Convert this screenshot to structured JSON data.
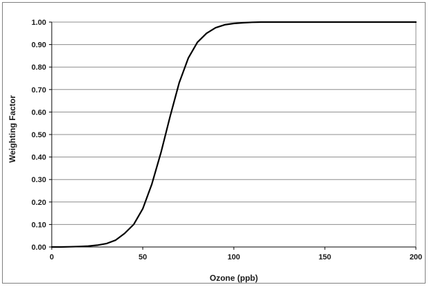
{
  "chart_data": {
    "type": "line",
    "title": "",
    "xlabel": "Ozone (ppb)",
    "ylabel": "Weighting Factor",
    "xlim": [
      0,
      200
    ],
    "ylim": [
      0,
      1
    ],
    "x_ticks": [
      "0",
      "50",
      "100",
      "150",
      "200"
    ],
    "y_ticks": [
      "0.00",
      "0.10",
      "0.20",
      "0.30",
      "0.40",
      "0.50",
      "0.60",
      "0.70",
      "0.80",
      "0.90",
      "1.00"
    ],
    "grid": "horizontal",
    "legend": "none",
    "line_color": "#000000",
    "grid_color": "#8c8c8c",
    "series": [
      {
        "x": [
          0,
          5,
          10,
          15,
          20,
          25,
          30,
          35,
          40,
          45,
          50,
          55,
          60,
          65,
          70,
          75,
          80,
          85,
          90,
          95,
          100,
          105,
          110,
          115,
          120,
          130,
          140,
          150,
          160,
          170,
          180,
          190,
          200
        ],
        "values": [
          0.0,
          0.0,
          0.001,
          0.002,
          0.004,
          0.008,
          0.015,
          0.03,
          0.06,
          0.1,
          0.17,
          0.28,
          0.42,
          0.58,
          0.73,
          0.84,
          0.91,
          0.95,
          0.975,
          0.988,
          0.994,
          0.997,
          0.999,
          1.0,
          1.0,
          1.0,
          1.0,
          1.0,
          1.0,
          1.0,
          1.0,
          1.0,
          1.0
        ]
      }
    ]
  }
}
